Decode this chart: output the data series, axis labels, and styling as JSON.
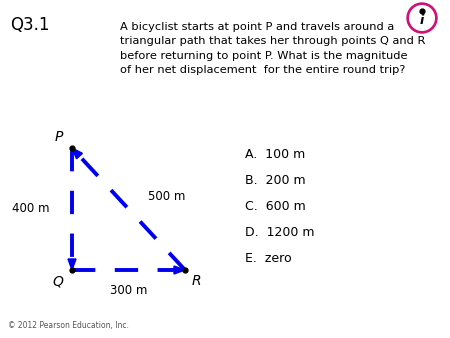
{
  "title": "Q3.1",
  "question_text": "A bicyclist starts at point P and travels around a\ntriangular path that takes her through points Q and R\nbefore returning to point P. What is the magnitude\nof her net displacement  for the entire round trip?",
  "choices": [
    "A.  100 m",
    "B.  200 m",
    "C.  600 m",
    "D.  1200 m",
    "E.  zero"
  ],
  "P": [
    0.0,
    1.0
  ],
  "Q": [
    0.0,
    0.0
  ],
  "R": [
    0.75,
    0.0
  ],
  "arrow_color": "#0000EE",
  "background_color": "#FFFFFF",
  "copyright": "© 2012 Pearson Education, Inc.",
  "icon_color": "#CC1177",
  "seg_label_PQ": "400 m",
  "seg_label_QR": "300 m",
  "seg_label_PR": "500 m"
}
